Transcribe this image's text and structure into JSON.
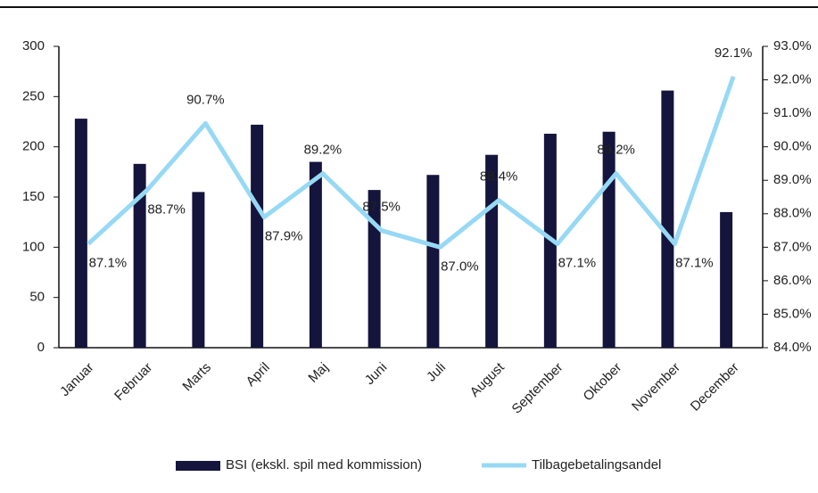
{
  "chart_data": {
    "type": "bar-line",
    "categories": [
      "Januar",
      "Februar",
      "Marts",
      "April",
      "Maj",
      "Juni",
      "Juli",
      "August",
      "September",
      "Oktober",
      "November",
      "December"
    ],
    "series": [
      {
        "name": "BSI (ekskl. spil med kommission)",
        "type": "bar",
        "color": "#14143c",
        "axis": "y",
        "values": [
          228,
          183,
          155,
          222,
          185,
          157,
          172,
          192,
          213,
          215,
          256,
          135
        ]
      },
      {
        "name": "Tilbagebetalingsandel",
        "type": "line",
        "color": "#97d9f5",
        "axis": "y2",
        "values": [
          87.1,
          88.7,
          90.7,
          87.9,
          89.2,
          87.5,
          87.0,
          88.4,
          87.1,
          89.2,
          87.1,
          92.1
        ],
        "value_labels": [
          "87.1%",
          "88.7%",
          "90.7%",
          "87.9%",
          "89.2%",
          "87.5%",
          "87.0%",
          "88.4%",
          "87.1%",
          "89.2%",
          "87.1%",
          "92.1%"
        ]
      }
    ],
    "ylim": [
      0,
      300
    ],
    "yticks": [
      0,
      50,
      100,
      150,
      200,
      250,
      300
    ],
    "y2lim": [
      84,
      93
    ],
    "y2ticks": [
      {
        "value": 84,
        "label": "84.0%"
      },
      {
        "value": 85,
        "label": "85.0%"
      },
      {
        "value": 86,
        "label": "86.0%"
      },
      {
        "value": 87,
        "label": "87.0%"
      },
      {
        "value": 88,
        "label": "88.0%"
      },
      {
        "value": 89,
        "label": "89.0%"
      },
      {
        "value": 90,
        "label": "90.0%"
      },
      {
        "value": 91,
        "label": "91.0%"
      },
      {
        "value": 92,
        "label": "92.0%"
      },
      {
        "value": 93,
        "label": "93.0%"
      }
    ],
    "legend": "bottom"
  }
}
